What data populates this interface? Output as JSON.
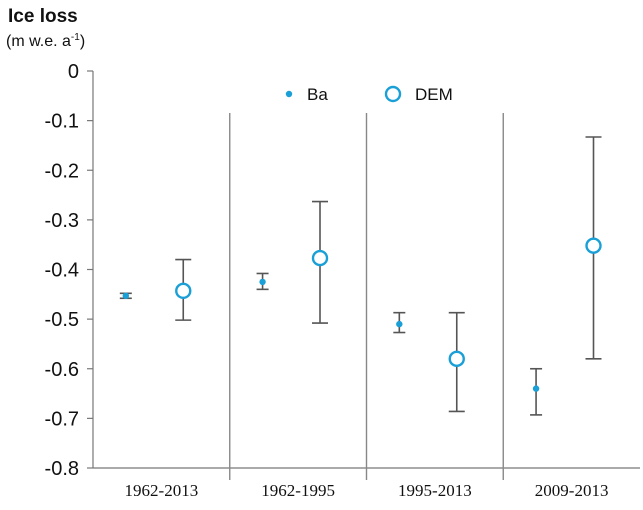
{
  "chart_data": {
    "type": "scatter",
    "title": "",
    "ylabel": "Ice loss",
    "ylabel_unit": {
      "prefix": "(m w.e. a",
      "superscript": "-1",
      "suffix": ")"
    },
    "xlabel": "",
    "ylim": [
      -0.8,
      0
    ],
    "yticks": [
      "0",
      "-0.1",
      "-0.2",
      "-0.3",
      "-0.4",
      "-0.5",
      "-0.6",
      "-0.7",
      "-0.8"
    ],
    "ytick_values": [
      0,
      -0.1,
      -0.2,
      -0.3,
      -0.4,
      -0.5,
      -0.6,
      -0.7,
      -0.8
    ],
    "categories": [
      "1962-2013",
      "1962-1995",
      "1995-2013",
      "2009-2013"
    ],
    "grid": false,
    "legend_position": "top",
    "series": [
      {
        "name": "Ba",
        "marker": "filled-dot",
        "color": "#1a9fd6",
        "values": [
          -0.453,
          -0.425,
          -0.51,
          -0.64
        ],
        "err_low": [
          -0.458,
          -0.44,
          -0.527,
          -0.693
        ],
        "err_high": [
          -0.448,
          -0.408,
          -0.487,
          -0.6
        ]
      },
      {
        "name": "DEM",
        "marker": "open-circle",
        "color": "#1a9fd6",
        "values": [
          -0.443,
          -0.377,
          -0.58,
          -0.352
        ],
        "err_low": [
          -0.502,
          -0.508,
          -0.686,
          -0.58
        ],
        "err_high": [
          -0.38,
          -0.263,
          -0.487,
          -0.133
        ]
      }
    ],
    "colors": {
      "axis": "#777777",
      "errorbar": "#555555",
      "divider": "#888888"
    }
  }
}
